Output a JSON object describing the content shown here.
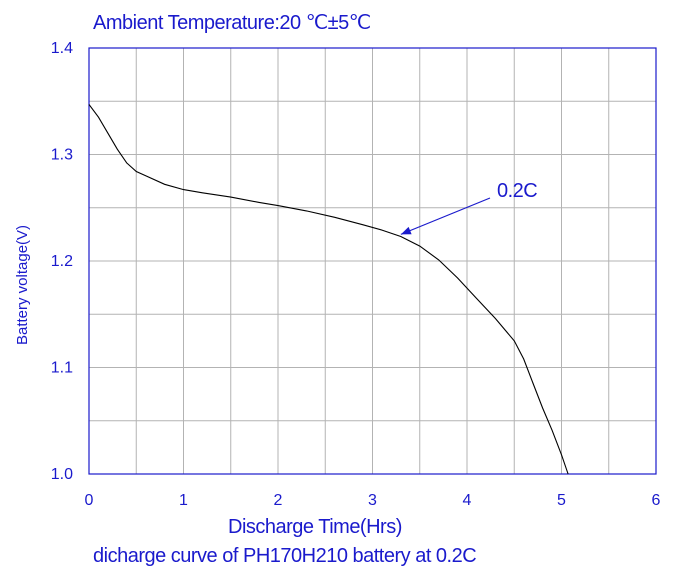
{
  "chart_data": {
    "type": "line",
    "title": "Ambient Temperature:20 ℃±5℃",
    "caption": "dicharge curve of PH170H210 battery at 0.2C",
    "xlabel": "Discharge Time(Hrs)",
    "ylabel": "Battery voltage(V)",
    "xlim": [
      0,
      6
    ],
    "ylim": [
      1.0,
      1.4
    ],
    "x_ticks": [
      "0",
      "1",
      "2",
      "3",
      "4",
      "5",
      "6"
    ],
    "y_ticks": [
      "1.0",
      "1.1",
      "1.2",
      "1.3",
      "1.4"
    ],
    "grid": true,
    "series": [
      {
        "name": "0.2C",
        "x": [
          0,
          0.1,
          0.2,
          0.3,
          0.4,
          0.5,
          0.6,
          0.8,
          1.0,
          1.2,
          1.5,
          1.8,
          2.0,
          2.3,
          2.6,
          2.9,
          3.1,
          3.3,
          3.5,
          3.7,
          3.9,
          4.1,
          4.3,
          4.5,
          4.6,
          4.7,
          4.8,
          4.9,
          5.0,
          5.07
        ],
        "y": [
          1.347,
          1.335,
          1.32,
          1.305,
          1.292,
          1.284,
          1.28,
          1.272,
          1.267,
          1.264,
          1.26,
          1.255,
          1.252,
          1.247,
          1.241,
          1.234,
          1.229,
          1.223,
          1.214,
          1.201,
          1.184,
          1.165,
          1.146,
          1.125,
          1.108,
          1.085,
          1.062,
          1.041,
          1.018,
          1.0
        ]
      }
    ],
    "annotation": {
      "text": "0.2C",
      "x": 3.3,
      "y": 1.225,
      "color": "#1a1acc"
    },
    "colors": {
      "text": "#1a1acc",
      "axis": "#1a1acc",
      "grid": "#b3b3b3",
      "line": "#000000"
    }
  }
}
